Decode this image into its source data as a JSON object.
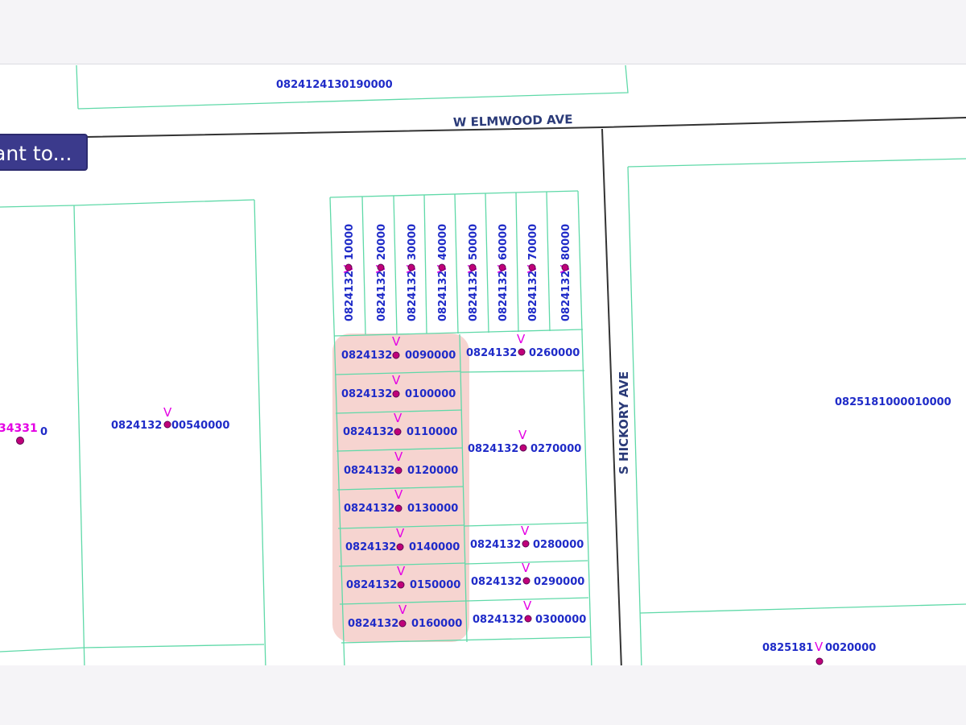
{
  "action_button": {
    "label": "ant to..."
  },
  "streets": [
    {
      "name": "W ELMWOOD AVE"
    },
    {
      "name": "S HICKORY AVE"
    }
  ],
  "parcels": {
    "top_strip": "0824124130190000",
    "big_east": "0825181000010000",
    "left_partial": "34331",
    "left_partial_tail": "0",
    "west_lot": "0824132",
    "west_lot_tail": "00540000",
    "vertical_lots": [
      {
        "prefix": "0824132",
        "suffix": "10000"
      },
      {
        "prefix": "0824132",
        "suffix": "20000"
      },
      {
        "prefix": "0824132",
        "suffix": "30000"
      },
      {
        "prefix": "0824132",
        "suffix": "40000"
      },
      {
        "prefix": "0824132",
        "suffix": "50000"
      },
      {
        "prefix": "0824132",
        "suffix": "60000"
      },
      {
        "prefix": "0824132",
        "suffix": "70000"
      },
      {
        "prefix": "0824132",
        "suffix": "80000"
      }
    ],
    "highlighted_lots": [
      {
        "prefix": "0824132",
        "suffix": "0090000"
      },
      {
        "prefix": "0824132",
        "suffix": "0100000"
      },
      {
        "prefix": "0824132",
        "suffix": "0110000"
      },
      {
        "prefix": "0824132",
        "suffix": "0120000"
      },
      {
        "prefix": "0824132",
        "suffix": "0130000"
      },
      {
        "prefix": "0824132",
        "suffix": "0140000"
      },
      {
        "prefix": "0824132",
        "suffix": "0150000"
      },
      {
        "prefix": "0824132",
        "suffix": "0160000"
      }
    ],
    "east_lots": [
      {
        "prefix": "0824132",
        "suffix": "0260000"
      },
      {
        "prefix": "0824132",
        "suffix": "0270000"
      },
      {
        "prefix": "0824132",
        "suffix": "0280000"
      },
      {
        "prefix": "0824132",
        "suffix": "0290000"
      },
      {
        "prefix": "0824132",
        "suffix": "0300000"
      }
    ],
    "southeast_lot": {
      "prefix": "0825181",
      "suffix": "0020000"
    }
  },
  "vertex_mark": "V",
  "colors": {
    "parcel_line": "#5fd9a8",
    "street_line": "#333333",
    "label": "#1f2bc8",
    "vertex": "#e400e4",
    "point_fill": "#c0007a",
    "highlight": "#f4c9c4",
    "button": "#3b3a8c"
  }
}
